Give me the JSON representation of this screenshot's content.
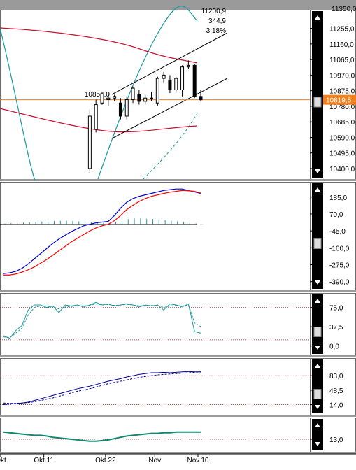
{
  "colors": {
    "background": "#ffffff",
    "panel_border": "#6e6e6e",
    "gridline_red": "#cc0000",
    "candle": "#000000",
    "ma_red": "#c8102e",
    "bollinger": "#1a9aa0",
    "last_price_line": "#f08020",
    "last_price_tag_bg": "#f08020",
    "macd_line": "#0000cc",
    "signal_line": "#ff0000",
    "histogram": "#1a9aa0",
    "stoch_k": "#1a9aa0",
    "stoch_d": "#1a9aa0",
    "rsi_line": "#000099",
    "bottom_line": "#108870",
    "scroll_bg": "#000000"
  },
  "info_box": {
    "line1": "11200,9",
    "line2": "344,9",
    "line3": "3,18%",
    "top_value": "11350,0"
  },
  "price_label": "10856,0",
  "last_price_tag": "10819,5",
  "x_axis": {
    "ticks": [
      "Okt",
      "Okt.11",
      "Okt.22",
      "Nov",
      "Nov.10"
    ]
  },
  "chart_data": [
    {
      "type": "candlestick",
      "panel": "price",
      "y_ticks": [
        "11255,0",
        "11160,0",
        "11065,0",
        "10970,0",
        "10875,0",
        "10780,0",
        "10685,0",
        "10590,0",
        "10495,0",
        "10400,0"
      ],
      "ylim": [
        10370,
        11360
      ],
      "last_price": 10819.5,
      "candles": [
        {
          "o": 10400,
          "h": 10760,
          "l": 10370,
          "c": 10720
        },
        {
          "o": 10640,
          "h": 10820,
          "l": 10620,
          "c": 10790
        },
        {
          "o": 10800,
          "h": 10870,
          "l": 10790,
          "c": 10856
        },
        {
          "o": 10820,
          "h": 10860,
          "l": 10780,
          "c": 10830
        },
        {
          "o": 10830,
          "h": 10850,
          "l": 10810,
          "c": 10840
        },
        {
          "o": 10800,
          "h": 10830,
          "l": 10700,
          "c": 10720
        },
        {
          "o": 10720,
          "h": 10840,
          "l": 10700,
          "c": 10820
        },
        {
          "o": 10820,
          "h": 10900,
          "l": 10800,
          "c": 10890
        },
        {
          "o": 10850,
          "h": 10880,
          "l": 10790,
          "c": 10810
        },
        {
          "o": 10810,
          "h": 10850,
          "l": 10790,
          "c": 10830
        },
        {
          "o": 10830,
          "h": 10870,
          "l": 10810,
          "c": 10825
        },
        {
          "o": 10800,
          "h": 10960,
          "l": 10780,
          "c": 10950
        },
        {
          "o": 10950,
          "h": 10990,
          "l": 10920,
          "c": 10970
        },
        {
          "o": 10940,
          "h": 10970,
          "l": 10860,
          "c": 10880
        },
        {
          "o": 10880,
          "h": 10960,
          "l": 10870,
          "c": 10950
        },
        {
          "o": 10880,
          "h": 11030,
          "l": 10840,
          "c": 11020
        },
        {
          "o": 11020,
          "h": 11060,
          "l": 11010,
          "c": 11030
        },
        {
          "o": 11030,
          "h": 11040,
          "l": 10830,
          "c": 10840
        },
        {
          "o": 10840,
          "h": 10880,
          "l": 10810,
          "c": 10819.5
        }
      ]
    },
    {
      "type": "line",
      "panel": "macd",
      "y_ticks": [
        "185,0",
        "70,0",
        "-45,0",
        "-160,0",
        "-275,0",
        "-390,0"
      ],
      "ylim": [
        -420,
        260
      ],
      "series": [
        {
          "values": [
            -335,
            -330,
            -320,
            -300,
            -270,
            -235,
            -200,
            -165,
            -130,
            -100,
            -75,
            -50,
            -30,
            -10,
            0,
            10,
            15,
            20,
            60,
            110,
            150,
            175,
            190,
            200,
            210,
            220,
            230,
            235,
            240,
            240,
            230,
            220,
            210
          ]
        },
        {
          "values": [
            -345,
            -345,
            -338,
            -325,
            -310,
            -290,
            -265,
            -240,
            -210,
            -180,
            -150,
            -120,
            -95,
            -70,
            -45,
            -25,
            -10,
            0,
            25,
            60,
            100,
            130,
            155,
            175,
            190,
            200,
            210,
            218,
            224,
            230,
            228,
            224,
            212
          ]
        }
      ],
      "histogram": [
        5,
        8,
        10,
        12,
        14,
        16,
        18,
        20,
        22,
        24,
        24,
        22,
        20,
        18,
        16,
        14,
        12,
        10,
        15,
        25,
        35,
        40,
        40,
        38,
        36,
        32,
        28,
        24,
        20,
        16,
        10,
        6,
        2
      ]
    },
    {
      "type": "line",
      "panel": "stochastic",
      "y_ticks": [
        "75,0",
        "37,5",
        "0,0"
      ],
      "ylim": [
        -10,
        95
      ],
      "series": [
        {
          "values": [
            20,
            15,
            30,
            40,
            70,
            80,
            80,
            75,
            78,
            65,
            80,
            78,
            80,
            76,
            80,
            85,
            80,
            82,
            78,
            80,
            82,
            80,
            76,
            80,
            78,
            80,
            70,
            82,
            80,
            76,
            82,
            28,
            25
          ]
        },
        {
          "values": [
            18,
            16,
            25,
            35,
            60,
            75,
            78,
            78,
            77,
            72,
            76,
            77,
            79,
            78,
            79,
            82,
            80,
            81,
            79,
            80,
            81,
            80,
            78,
            79,
            79,
            79,
            75,
            78,
            79,
            78,
            80,
            45,
            38
          ]
        }
      ]
    },
    {
      "type": "line",
      "panel": "rsi",
      "y_ticks": [
        "83,0",
        "48,5",
        "14,0"
      ],
      "ylim": [
        0,
        115
      ],
      "series": [
        {
          "values": [
            14,
            16,
            16,
            18,
            20,
            24,
            28,
            32,
            36,
            40,
            44,
            48,
            52,
            55,
            58,
            62,
            66,
            70,
            73,
            76,
            80,
            83,
            86,
            88,
            90,
            90,
            91,
            90,
            91,
            92,
            93,
            92,
            92
          ]
        },
        {
          "values": [
            18,
            17,
            17,
            18,
            19,
            21,
            24,
            27,
            30,
            34,
            38,
            42,
            46,
            49,
            52,
            56,
            60,
            64,
            67,
            70,
            73,
            76,
            79,
            81,
            83,
            85,
            86,
            87,
            88,
            89,
            90,
            91,
            92
          ]
        }
      ]
    },
    {
      "type": "line",
      "panel": "bottom",
      "y_ticks": [
        "13,0"
      ],
      "ylim": [
        0,
        40
      ],
      "series": [
        {
          "values": [
            24,
            23,
            22,
            21,
            20,
            19,
            19,
            18,
            16,
            15,
            14,
            13,
            12,
            11,
            10,
            10,
            11,
            12,
            14,
            16,
            18,
            19,
            20,
            21,
            22,
            22,
            23,
            23,
            24,
            24,
            24,
            24,
            24
          ]
        }
      ]
    }
  ]
}
